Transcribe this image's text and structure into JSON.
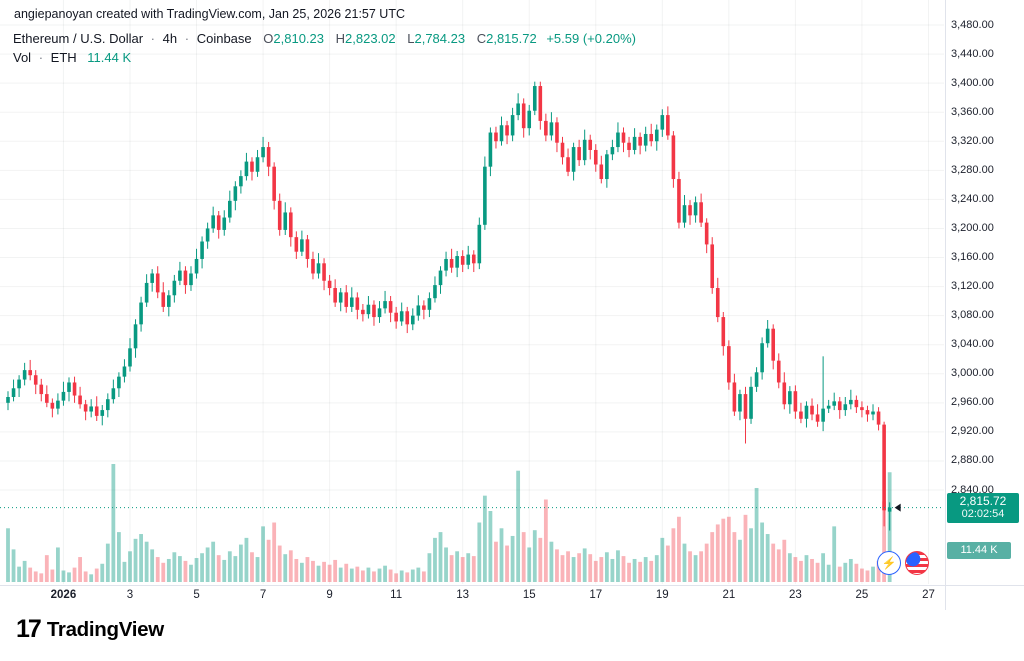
{
  "attribution": "angiepanoyan created with TradingView.com, Jan 25, 2026 21:57 UTC",
  "legend": {
    "symbol": "Ethereum / U.S. Dollar",
    "interval": "4h",
    "exchange": "Coinbase",
    "separator": "·",
    "ohlc": {
      "o_label": "O",
      "o": "2,810.23",
      "h_label": "H",
      "h": "2,823.02",
      "l_label": "L",
      "l": "2,784.23",
      "c_label": "C",
      "c": "2,815.72",
      "change": "+5.59 (+0.20%)"
    },
    "volume_label": "Vol",
    "volume_symbol": "ETH",
    "volume_value": "11.44 K"
  },
  "price_badge": {
    "price": "2,815.72",
    "countdown": "02:02:54"
  },
  "volume_badge": {
    "value": "11.44 K"
  },
  "icons": {
    "lightning": "⚡"
  },
  "logo": {
    "mark": "17",
    "text": "TradingView"
  },
  "colors": {
    "up": "#089981",
    "down": "#f23645",
    "vol_up": "rgba(8,153,129,0.42)",
    "vol_down": "rgba(242,54,69,0.38)",
    "badge_price": "#089981",
    "badge_volume": "#58b0a4",
    "grid": "rgba(42,46,57,0.06)",
    "axis_line": "#e0e3eb",
    "marker": "#131722"
  },
  "chart_data": {
    "type": "candlestick",
    "title": "Ethereum / U.S. Dollar · 4h · Coinbase",
    "interval": "4h",
    "last_price": 2815.72,
    "current_ohlc": {
      "open": 2810.23,
      "high": 2823.02,
      "low": 2784.23,
      "close": 2815.72
    },
    "current_volume_k": 11.44,
    "price_axis": {
      "max": 3480,
      "min": 2840,
      "ticks": [
        {
          "label": "3,480.00",
          "value": 3480
        },
        {
          "label": "3,440.00",
          "value": 3440
        },
        {
          "label": "3,400.00",
          "value": 3400
        },
        {
          "label": "3,360.00",
          "value": 3360
        },
        {
          "label": "3,320.00",
          "value": 3320
        },
        {
          "label": "3,280.00",
          "value": 3280
        },
        {
          "label": "3,240.00",
          "value": 3240
        },
        {
          "label": "3,200.00",
          "value": 3200
        },
        {
          "label": "3,160.00",
          "value": 3160
        },
        {
          "label": "3,120.00",
          "value": 3120
        },
        {
          "label": "3,080.00",
          "value": 3080
        },
        {
          "label": "3,040.00",
          "value": 3040
        },
        {
          "label": "3,000.00",
          "value": 3000
        },
        {
          "label": "2,960.00",
          "value": 2960
        },
        {
          "label": "2,920.00",
          "value": 2920
        },
        {
          "label": "2,880.00",
          "value": 2880
        },
        {
          "label": "2,840.00",
          "value": 2840
        }
      ]
    },
    "time_axis": {
      "ticks": [
        {
          "label": "2026",
          "index": 10,
          "major": true
        },
        {
          "label": "3",
          "index": 22
        },
        {
          "label": "5",
          "index": 34
        },
        {
          "label": "7",
          "index": 46
        },
        {
          "label": "9",
          "index": 58
        },
        {
          "label": "11",
          "index": 70
        },
        {
          "label": "13",
          "index": 82
        },
        {
          "label": "15",
          "index": 94
        },
        {
          "label": "17",
          "index": 106
        },
        {
          "label": "19",
          "index": 118
        },
        {
          "label": "21",
          "index": 130
        },
        {
          "label": "23",
          "index": 142
        },
        {
          "label": "25",
          "index": 154
        },
        {
          "label": "27",
          "index": 166
        }
      ]
    },
    "volume_axis": {
      "max": 12.3,
      "unit": "K"
    },
    "candles": [
      [
        2960,
        2976,
        2950,
        2968
      ],
      [
        2968,
        2992,
        2962,
        2980
      ],
      [
        2980,
        2998,
        2968,
        2992
      ],
      [
        2992,
        3015,
        2984,
        3005
      ],
      [
        3005,
        3019,
        2991,
        2998
      ],
      [
        2998,
        3005,
        2972,
        2985
      ],
      [
        2985,
        2993,
        2962,
        2972
      ],
      [
        2972,
        2984,
        2954,
        2960
      ],
      [
        2960,
        2966,
        2940,
        2952
      ],
      [
        2952,
        2973,
        2944,
        2963
      ],
      [
        2963,
        2989,
        2956,
        2975
      ],
      [
        2975,
        2995,
        2962,
        2988
      ],
      [
        2988,
        2996,
        2960,
        2970
      ],
      [
        2970,
        2982,
        2952,
        2958
      ],
      [
        2958,
        2964,
        2936,
        2948
      ],
      [
        2948,
        2965,
        2940,
        2955
      ],
      [
        2955,
        2969,
        2935,
        2942
      ],
      [
        2942,
        2957,
        2929,
        2950
      ],
      [
        2950,
        2973,
        2940,
        2965
      ],
      [
        2965,
        2992,
        2959,
        2980
      ],
      [
        2980,
        3002,
        2968,
        2996
      ],
      [
        2996,
        3020,
        2988,
        3010
      ],
      [
        3010,
        3049,
        3003,
        3035
      ],
      [
        3035,
        3075,
        3022,
        3068
      ],
      [
        3068,
        3106,
        3058,
        3098
      ],
      [
        3098,
        3137,
        3092,
        3125
      ],
      [
        3125,
        3144,
        3113,
        3138
      ],
      [
        3138,
        3148,
        3104,
        3112
      ],
      [
        3112,
        3126,
        3085,
        3092
      ],
      [
        3092,
        3115,
        3079,
        3108
      ],
      [
        3108,
        3136,
        3098,
        3128
      ],
      [
        3128,
        3154,
        3122,
        3142
      ],
      [
        3142,
        3148,
        3110,
        3122
      ],
      [
        3122,
        3148,
        3114,
        3138
      ],
      [
        3138,
        3172,
        3131,
        3158
      ],
      [
        3158,
        3189,
        3145,
        3182
      ],
      [
        3182,
        3208,
        3172,
        3200
      ],
      [
        3200,
        3230,
        3194,
        3218
      ],
      [
        3218,
        3224,
        3186,
        3198
      ],
      [
        3198,
        3225,
        3190,
        3215
      ],
      [
        3215,
        3252,
        3208,
        3238
      ],
      [
        3238,
        3265,
        3225,
        3258
      ],
      [
        3258,
        3280,
        3248,
        3272
      ],
      [
        3272,
        3304,
        3266,
        3292
      ],
      [
        3292,
        3298,
        3266,
        3278
      ],
      [
        3278,
        3308,
        3271,
        3298
      ],
      [
        3298,
        3326,
        3291,
        3312
      ],
      [
        3312,
        3319,
        3272,
        3285
      ],
      [
        3285,
        3291,
        3226,
        3238
      ],
      [
        3238,
        3248,
        3190,
        3198
      ],
      [
        3198,
        3236,
        3191,
        3222
      ],
      [
        3222,
        3229,
        3175,
        3188
      ],
      [
        3188,
        3196,
        3158,
        3168
      ],
      [
        3168,
        3197,
        3162,
        3185
      ],
      [
        3185,
        3191,
        3146,
        3158
      ],
      [
        3158,
        3168,
        3130,
        3138
      ],
      [
        3138,
        3166,
        3131,
        3152
      ],
      [
        3152,
        3159,
        3115,
        3128
      ],
      [
        3128,
        3136,
        3108,
        3118
      ],
      [
        3118,
        3130,
        3092,
        3098
      ],
      [
        3098,
        3118,
        3086,
        3112
      ],
      [
        3112,
        3122,
        3084,
        3092
      ],
      [
        3092,
        3119,
        3085,
        3105
      ],
      [
        3105,
        3112,
        3075,
        3088
      ],
      [
        3088,
        3096,
        3072,
        3082
      ],
      [
        3082,
        3107,
        3076,
        3095
      ],
      [
        3095,
        3101,
        3066,
        3078
      ],
      [
        3078,
        3100,
        3070,
        3090
      ],
      [
        3090,
        3114,
        3083,
        3100
      ],
      [
        3100,
        3107,
        3071,
        3084
      ],
      [
        3084,
        3092,
        3062,
        3072
      ],
      [
        3072,
        3098,
        3066,
        3086
      ],
      [
        3086,
        3092,
        3056,
        3068
      ],
      [
        3068,
        3090,
        3060,
        3080
      ],
      [
        3080,
        3108,
        3073,
        3094
      ],
      [
        3094,
        3101,
        3075,
        3088
      ],
      [
        3088,
        3112,
        3078,
        3104
      ],
      [
        3104,
        3134,
        3098,
        3122
      ],
      [
        3122,
        3148,
        3110,
        3142
      ],
      [
        3142,
        3168,
        3134,
        3158
      ],
      [
        3158,
        3172,
        3139,
        3146
      ],
      [
        3146,
        3169,
        3133,
        3162
      ],
      [
        3162,
        3170,
        3140,
        3150
      ],
      [
        3150,
        3176,
        3144,
        3164
      ],
      [
        3164,
        3170,
        3140,
        3152
      ],
      [
        3152,
        3215,
        3144,
        3205
      ],
      [
        3205,
        3299,
        3198,
        3285
      ],
      [
        3285,
        3339,
        3272,
        3332
      ],
      [
        3332,
        3340,
        3310,
        3320
      ],
      [
        3320,
        3354,
        3314,
        3342
      ],
      [
        3342,
        3348,
        3316,
        3328
      ],
      [
        3328,
        3366,
        3320,
        3356
      ],
      [
        3356,
        3386,
        3349,
        3372
      ],
      [
        3372,
        3379,
        3325,
        3338
      ],
      [
        3338,
        3370,
        3328,
        3362
      ],
      [
        3362,
        3402,
        3356,
        3396
      ],
      [
        3396,
        3402,
        3336,
        3348
      ],
      [
        3348,
        3358,
        3320,
        3328
      ],
      [
        3328,
        3360,
        3321,
        3346
      ],
      [
        3346,
        3353,
        3305,
        3318
      ],
      [
        3318,
        3326,
        3288,
        3298
      ],
      [
        3298,
        3310,
        3272,
        3278
      ],
      [
        3278,
        3318,
        3266,
        3312
      ],
      [
        3312,
        3322,
        3286,
        3294
      ],
      [
        3294,
        3336,
        3287,
        3322
      ],
      [
        3322,
        3329,
        3295,
        3308
      ],
      [
        3308,
        3316,
        3278,
        3288
      ],
      [
        3288,
        3300,
        3262,
        3268
      ],
      [
        3268,
        3308,
        3256,
        3302
      ],
      [
        3302,
        3322,
        3294,
        3312
      ],
      [
        3312,
        3346,
        3305,
        3332
      ],
      [
        3332,
        3339,
        3305,
        3318
      ],
      [
        3318,
        3326,
        3298,
        3308
      ],
      [
        3308,
        3338,
        3302,
        3326
      ],
      [
        3326,
        3332,
        3302,
        3314
      ],
      [
        3314,
        3340,
        3306,
        3330
      ],
      [
        3330,
        3344,
        3313,
        3320
      ],
      [
        3320,
        3343,
        3307,
        3336
      ],
      [
        3336,
        3364,
        3326,
        3356
      ],
      [
        3356,
        3368,
        3322,
        3328
      ],
      [
        3328,
        3334,
        3256,
        3268
      ],
      [
        3268,
        3278,
        3200,
        3208
      ],
      [
        3208,
        3246,
        3201,
        3232
      ],
      [
        3232,
        3239,
        3205,
        3218
      ],
      [
        3218,
        3244,
        3208,
        3236
      ],
      [
        3236,
        3248,
        3202,
        3208
      ],
      [
        3208,
        3214,
        3166,
        3178
      ],
      [
        3178,
        3188,
        3110,
        3118
      ],
      [
        3118,
        3132,
        3071,
        3078
      ],
      [
        3078,
        3085,
        3025,
        3038
      ],
      [
        3038,
        3046,
        2978,
        2988
      ],
      [
        2988,
        3000,
        2942,
        2948
      ],
      [
        2948,
        2978,
        2936,
        2972
      ],
      [
        2972,
        2982,
        2904,
        2938
      ],
      [
        2938,
        2996,
        2931,
        2982
      ],
      [
        2982,
        3009,
        2975,
        3002
      ],
      [
        3002,
        3050,
        2992,
        3042
      ],
      [
        3042,
        3074,
        3036,
        3062
      ],
      [
        3062,
        3068,
        3006,
        3018
      ],
      [
        3018,
        3028,
        2980,
        2988
      ],
      [
        2988,
        3002,
        2951,
        2958
      ],
      [
        2958,
        2983,
        2945,
        2976
      ],
      [
        2976,
        2984,
        2938,
        2948
      ],
      [
        2948,
        2960,
        2932,
        2938
      ],
      [
        2938,
        2962,
        2926,
        2956
      ],
      [
        2956,
        2966,
        2936,
        2944
      ],
      [
        2944,
        2958,
        2927,
        2934
      ],
      [
        2934,
        3024,
        2921,
        2952
      ],
      [
        2952,
        2964,
        2946,
        2956
      ],
      [
        2956,
        2974,
        2950,
        2962
      ],
      [
        2962,
        2968,
        2938,
        2950
      ],
      [
        2950,
        2968,
        2942,
        2958
      ],
      [
        2958,
        2978,
        2951,
        2964
      ],
      [
        2964,
        2970,
        2946,
        2954
      ],
      [
        2954,
        2962,
        2940,
        2950
      ],
      [
        2950,
        2956,
        2934,
        2944
      ],
      [
        2944,
        2958,
        2936,
        2948
      ],
      [
        2948,
        2954,
        2922,
        2930
      ],
      [
        2930,
        2934,
        2790,
        2812
      ],
      [
        2810.23,
        2823.02,
        2784.23,
        2815.72
      ]
    ],
    "volumes": [
      5.6,
      3.4,
      1.6,
      2.2,
      1.5,
      1.1,
      0.9,
      2.8,
      1.3,
      3.6,
      1.2,
      1.0,
      1.5,
      2.6,
      1.1,
      0.8,
      1.4,
      1.9,
      4.0,
      12.3,
      5.2,
      2.1,
      3.2,
      4.5,
      5.0,
      4.2,
      3.4,
      2.6,
      2.0,
      2.4,
      3.1,
      2.7,
      2.2,
      1.8,
      2.5,
      3.0,
      3.6,
      4.2,
      2.8,
      2.3,
      3.2,
      2.7,
      3.9,
      4.6,
      3.1,
      2.6,
      5.8,
      4.4,
      6.2,
      3.8,
      2.9,
      3.3,
      2.4,
      2.0,
      2.6,
      2.2,
      1.7,
      2.1,
      1.8,
      2.3,
      1.5,
      1.9,
      1.4,
      1.6,
      1.2,
      1.5,
      1.1,
      1.4,
      1.7,
      1.3,
      0.9,
      1.2,
      1.0,
      1.3,
      1.5,
      1.1,
      3.0,
      4.6,
      5.2,
      3.6,
      2.8,
      3.2,
      2.6,
      3.0,
      2.7,
      6.2,
      9.0,
      7.4,
      4.2,
      5.6,
      3.8,
      4.8,
      11.6,
      5.2,
      3.6,
      5.4,
      4.6,
      8.6,
      4.2,
      3.4,
      2.8,
      3.2,
      2.6,
      3.0,
      3.5,
      2.9,
      2.2,
      2.6,
      3.1,
      2.4,
      3.3,
      2.7,
      2.0,
      2.4,
      2.1,
      2.6,
      2.2,
      2.8,
      4.6,
      3.8,
      5.6,
      6.8,
      4.0,
      3.2,
      2.8,
      3.2,
      4.0,
      5.2,
      6.0,
      6.6,
      6.8,
      5.2,
      4.4,
      7.0,
      5.6,
      9.8,
      6.2,
      5.0,
      4.0,
      3.4,
      4.4,
      3.0,
      2.6,
      2.2,
      2.8,
      2.4,
      2.0,
      3.0,
      1.8,
      5.8,
      1.6,
      2.0,
      2.4,
      1.9,
      1.4,
      1.2,
      1.6,
      2.2,
      8.4,
      11.44
    ]
  }
}
